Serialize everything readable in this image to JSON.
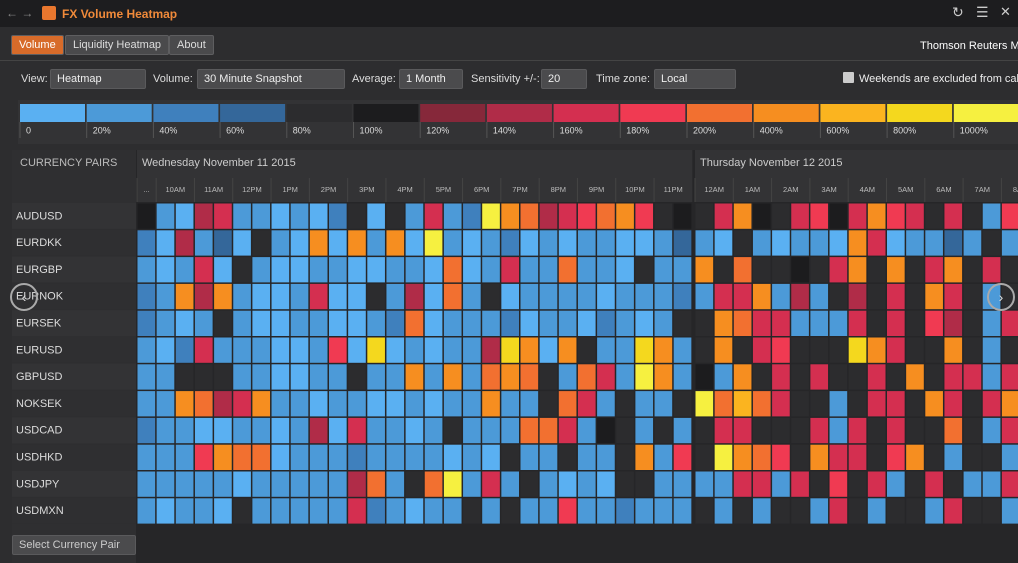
{
  "header": {
    "title": "FX Volume Heatmap"
  },
  "tabs": [
    "Volume",
    "Liquidity Heatmap",
    "About"
  ],
  "brand": "Thomson Reuters M",
  "controls": {
    "view": {
      "label": "View:",
      "value": "Heatmap"
    },
    "volume": {
      "label": "Volume:",
      "value": "30 Minute Snapshot"
    },
    "average": {
      "label": "Average:",
      "value": "1 Month"
    },
    "sensitivity": {
      "label": "Sensitivity +/-:",
      "value": "20"
    },
    "timezone": {
      "label": "Time zone:",
      "value": "Local"
    },
    "note": "Weekends are excluded from calc"
  },
  "legend": {
    "items": [
      {
        "label": "0",
        "color": "#5ab0f2"
      },
      {
        "label": "20%",
        "color": "#4c9ad8"
      },
      {
        "label": "40%",
        "color": "#3f80bd"
      },
      {
        "label": "60%",
        "color": "#34679a"
      },
      {
        "label": "80%",
        "color": "#2c2c2e"
      },
      {
        "label": "100%",
        "color": "#1c1c1e"
      },
      {
        "label": "120%",
        "color": "#86283a"
      },
      {
        "label": "140%",
        "color": "#b02c48"
      },
      {
        "label": "160%",
        "color": "#d42f50"
      },
      {
        "label": "180%",
        "color": "#f03a52"
      },
      {
        "label": "200%",
        "color": "#f27030"
      },
      {
        "label": "400%",
        "color": "#f68e20"
      },
      {
        "label": "600%",
        "color": "#fbb41f"
      },
      {
        "label": "800%",
        "color": "#f4d81e"
      },
      {
        "label": "1000%",
        "color": "#f6f040"
      }
    ]
  },
  "grid": {
    "header": "CURRENCY PAIRS",
    "days": [
      {
        "label": "Wednesday November 11 2015",
        "times": [
          "...",
          "10AM",
          "11AM",
          "12PM",
          "1PM",
          "2PM",
          "3PM",
          "4PM",
          "5PM",
          "6PM",
          "7PM",
          "8PM",
          "9PM",
          "10PM",
          "11PM"
        ]
      },
      {
        "label": "Thursday November 12 2015",
        "times": [
          "12AM",
          "1AM",
          "2AM",
          "3AM",
          "4AM",
          "5AM",
          "6AM",
          "7AM",
          "8AM"
        ]
      }
    ],
    "rows": [
      {
        "pair": "AUDUSD",
        "cells": [
          5,
          1,
          0,
          7,
          8,
          1,
          1,
          0,
          1,
          0,
          2,
          4,
          0,
          4,
          1,
          8,
          1,
          2,
          14,
          11,
          10,
          7,
          8,
          9,
          10,
          11,
          9,
          4,
          5,
          4,
          8,
          11,
          5,
          4,
          8,
          9,
          5,
          8,
          11,
          9,
          8,
          4,
          8,
          4,
          1,
          9
        ]
      },
      {
        "pair": "EURDKK",
        "cells": [
          2,
          0,
          7,
          1,
          3,
          0,
          4,
          1,
          0,
          11,
          0,
          11,
          1,
          11,
          0,
          14,
          1,
          0,
          1,
          2,
          0,
          1,
          0,
          1,
          1,
          0,
          0,
          1,
          3,
          1,
          0,
          4,
          1,
          0,
          1,
          1,
          0,
          11,
          8,
          0,
          1,
          1,
          3,
          1,
          4,
          1
        ]
      },
      {
        "pair": "EURGBP",
        "cells": [
          1,
          0,
          1,
          8,
          0,
          4,
          1,
          0,
          0,
          1,
          1,
          0,
          0,
          1,
          1,
          0,
          10,
          0,
          1,
          8,
          1,
          1,
          10,
          1,
          1,
          0,
          4,
          1,
          1,
          11,
          4,
          10,
          4,
          4,
          5,
          4,
          8,
          11,
          4,
          11,
          4,
          8,
          11,
          4,
          8,
          4
        ]
      },
      {
        "pair": "EURNOK",
        "cells": [
          2,
          1,
          11,
          7,
          11,
          1,
          0,
          0,
          1,
          8,
          0,
          0,
          4,
          1,
          7,
          0,
          10,
          1,
          4,
          0,
          1,
          1,
          1,
          1,
          0,
          1,
          1,
          1,
          2,
          1,
          8,
          8,
          11,
          1,
          7,
          1,
          4,
          7,
          4,
          8,
          4,
          11,
          8,
          4,
          1,
          4
        ]
      },
      {
        "pair": "EURSEK",
        "cells": [
          2,
          1,
          0,
          1,
          4,
          1,
          0,
          0,
          1,
          1,
          0,
          0,
          1,
          2,
          10,
          0,
          1,
          1,
          1,
          2,
          0,
          1,
          1,
          0,
          2,
          1,
          0,
          1,
          4,
          4,
          11,
          10,
          8,
          8,
          1,
          1,
          1,
          8,
          4,
          8,
          4,
          9,
          7,
          4,
          1,
          8
        ]
      },
      {
        "pair": "EURUSD",
        "cells": [
          1,
          0,
          2,
          8,
          1,
          1,
          1,
          0,
          0,
          1,
          9,
          0,
          13,
          0,
          1,
          0,
          1,
          1,
          7,
          13,
          11,
          0,
          11,
          4,
          1,
          1,
          13,
          11,
          1,
          4,
          11,
          4,
          8,
          9,
          4,
          4,
          4,
          13,
          11,
          8,
          4,
          4,
          11,
          4,
          1,
          4
        ]
      },
      {
        "pair": "GBPUSD",
        "cells": [
          1,
          1,
          4,
          4,
          4,
          1,
          1,
          0,
          0,
          1,
          1,
          4,
          1,
          1,
          11,
          1,
          11,
          1,
          10,
          11,
          10,
          4,
          1,
          10,
          8,
          1,
          14,
          11,
          1,
          5,
          1,
          11,
          4,
          8,
          4,
          8,
          4,
          4,
          8,
          4,
          11,
          4,
          8,
          8,
          1,
          8
        ]
      },
      {
        "pair": "NOKSEK",
        "cells": [
          1,
          1,
          11,
          10,
          7,
          8,
          11,
          1,
          1,
          0,
          1,
          1,
          0,
          0,
          1,
          0,
          1,
          1,
          11,
          1,
          1,
          4,
          10,
          8,
          1,
          4,
          1,
          1,
          4,
          14,
          10,
          12,
          10,
          8,
          4,
          4,
          1,
          4,
          8,
          8,
          4,
          11,
          8,
          4,
          8,
          11
        ]
      },
      {
        "pair": "USDCAD",
        "cells": [
          2,
          1,
          1,
          0,
          0,
          1,
          1,
          0,
          1,
          7,
          0,
          8,
          1,
          1,
          0,
          1,
          4,
          1,
          1,
          1,
          10,
          10,
          8,
          1,
          5,
          4,
          1,
          4,
          1,
          4,
          8,
          8,
          4,
          4,
          4,
          8,
          1,
          8,
          4,
          8,
          4,
          4,
          10,
          4,
          1,
          8
        ]
      },
      {
        "pair": "USDHKD",
        "cells": [
          1,
          1,
          1,
          9,
          11,
          10,
          10,
          0,
          1,
          1,
          1,
          2,
          1,
          1,
          1,
          1,
          0,
          1,
          0,
          4,
          1,
          1,
          4,
          1,
          1,
          4,
          11,
          1,
          9,
          4,
          14,
          11,
          10,
          9,
          4,
          11,
          8,
          8,
          4,
          9,
          11,
          4,
          1,
          4,
          4,
          1
        ]
      },
      {
        "pair": "USDJPY",
        "cells": [
          1,
          1,
          1,
          1,
          1,
          0,
          1,
          1,
          1,
          1,
          1,
          7,
          10,
          1,
          4,
          10,
          14,
          1,
          8,
          1,
          4,
          1,
          0,
          1,
          0,
          4,
          4,
          1,
          1,
          1,
          1,
          8,
          8,
          1,
          8,
          4,
          9,
          4,
          8,
          1,
          4,
          8,
          4,
          1,
          1,
          8
        ]
      },
      {
        "pair": "USDMXN",
        "cells": [
          1,
          0,
          1,
          1,
          0,
          4,
          1,
          1,
          1,
          1,
          1,
          8,
          2,
          1,
          0,
          1,
          1,
          4,
          1,
          4,
          1,
          1,
          9,
          1,
          1,
          2,
          1,
          1,
          1,
          4,
          1,
          4,
          1,
          4,
          4,
          1,
          8,
          4,
          1,
          4,
          4,
          1,
          8,
          4,
          4,
          1
        ]
      }
    ]
  },
  "footer": {
    "select": "Select Currency Pair"
  }
}
